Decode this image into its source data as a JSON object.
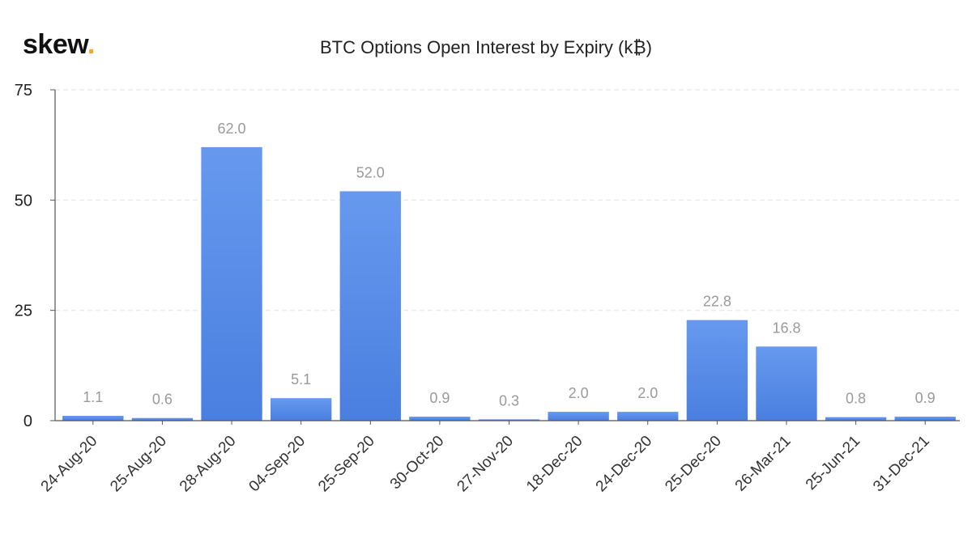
{
  "logo": {
    "text": "skew",
    "dot": "."
  },
  "chart_data": {
    "type": "bar",
    "title": "BTC Options Open Interest by Expiry (k₿)",
    "xlabel": "",
    "ylabel": "",
    "ylim": [
      0,
      75
    ],
    "yticks": [
      0,
      25,
      50,
      75
    ],
    "grid": true,
    "categories": [
      "24-Aug-20",
      "25-Aug-20",
      "28-Aug-20",
      "04-Sep-20",
      "25-Sep-20",
      "30-Oct-20",
      "27-Nov-20",
      "18-Dec-20",
      "24-Dec-20",
      "25-Dec-20",
      "26-Mar-21",
      "25-Jun-21",
      "31-Dec-21"
    ],
    "values": [
      1.1,
      0.6,
      62.0,
      5.1,
      52.0,
      0.9,
      0.3,
      2.0,
      2.0,
      22.8,
      16.8,
      0.8,
      0.9
    ],
    "value_labels": [
      "1.1",
      "0.6",
      "62.0",
      "5.1",
      "52.0",
      "0.9",
      "0.3",
      "2.0",
      "2.0",
      "22.8",
      "16.8",
      "0.8",
      "0.9"
    ],
    "colors": {
      "bar_top": "#6699ee",
      "bar_bottom": "#4a7fe0",
      "label": "#9a9a9a",
      "grid": "#e6e6e6",
      "axis": "#555555"
    }
  }
}
